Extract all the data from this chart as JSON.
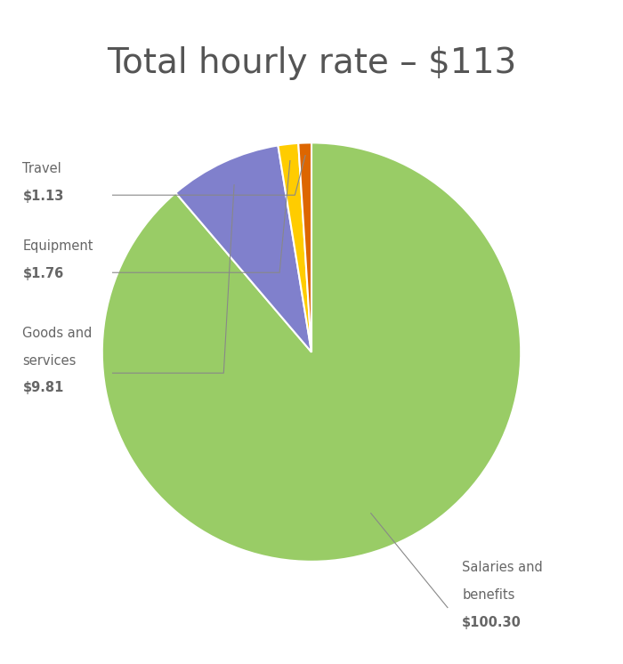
{
  "title": "Total hourly rate – $113",
  "title_fontsize": 28,
  "title_color": "#555555",
  "slices": [
    {
      "label": "Salaries and\nbenefits",
      "value": 100.3,
      "color": "#99cc66"
    },
    {
      "label": "Goods and\nservices",
      "value": 9.81,
      "color": "#8080cc"
    },
    {
      "label": "Equipment",
      "value": 1.76,
      "color": "#ffcc00"
    },
    {
      "label": "Travel",
      "value": 1.13,
      "color": "#dd6600"
    }
  ],
  "label_color": "#666666",
  "label_fontsize": 10.5,
  "background_color": "#ffffff"
}
